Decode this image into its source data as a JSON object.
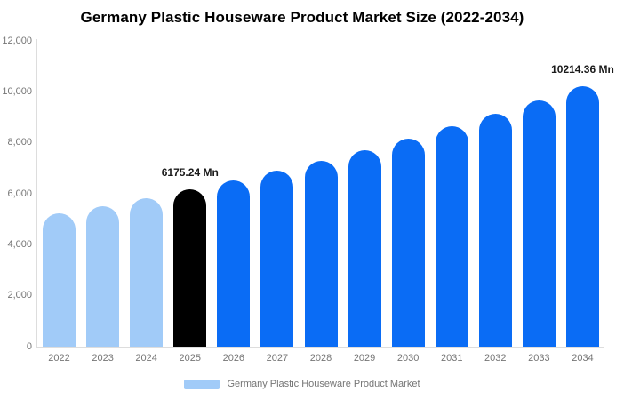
{
  "title": "Germany Plastic Houseware Product Market Size (2022-2034)",
  "legend": {
    "label": "Germany Plastic Houseware Product Market",
    "swatch_color": "#a1cbf8"
  },
  "colors": {
    "background": "#ffffff",
    "historical_bar": "#a1cbf8",
    "base_year_bar": "#000000",
    "forecast_bar": "#0a6cf5",
    "axis_line": "#dddddd",
    "tick_text": "#757575",
    "value_label_text": "#1a1a1a",
    "title_text": "#000000"
  },
  "chart_data": {
    "type": "bar",
    "title": "Germany Plastic Houseware Product Market Size (2022-2034)",
    "unit": "Mn",
    "categories": [
      "2022",
      "2023",
      "2024",
      "2025",
      "2026",
      "2027",
      "2028",
      "2029",
      "2030",
      "2031",
      "2032",
      "2033",
      "2034"
    ],
    "values": [
      5221,
      5522,
      5839,
      6175.24,
      6530,
      6906,
      7303,
      7723,
      8167,
      8637,
      9134,
      9659,
      10214.36
    ],
    "bar_colors": [
      "#a1cbf8",
      "#a1cbf8",
      "#a1cbf8",
      "#000000",
      "#0a6cf5",
      "#0a6cf5",
      "#0a6cf5",
      "#0a6cf5",
      "#0a6cf5",
      "#0a6cf5",
      "#0a6cf5",
      "#0a6cf5",
      "#0a6cf5"
    ],
    "data_labels": {
      "2025": "6175.24 Mn",
      "2034": "10214.36 Mn"
    },
    "ylim": [
      0,
      12000
    ],
    "ytick_step": 2000,
    "ytick_labels": [
      "0",
      "2,000",
      "4,000",
      "6,000",
      "8,000",
      "10,000",
      "12,000"
    ],
    "grid": false,
    "legend_position": "bottom",
    "series_name": "Germany Plastic Houseware Product Market"
  }
}
